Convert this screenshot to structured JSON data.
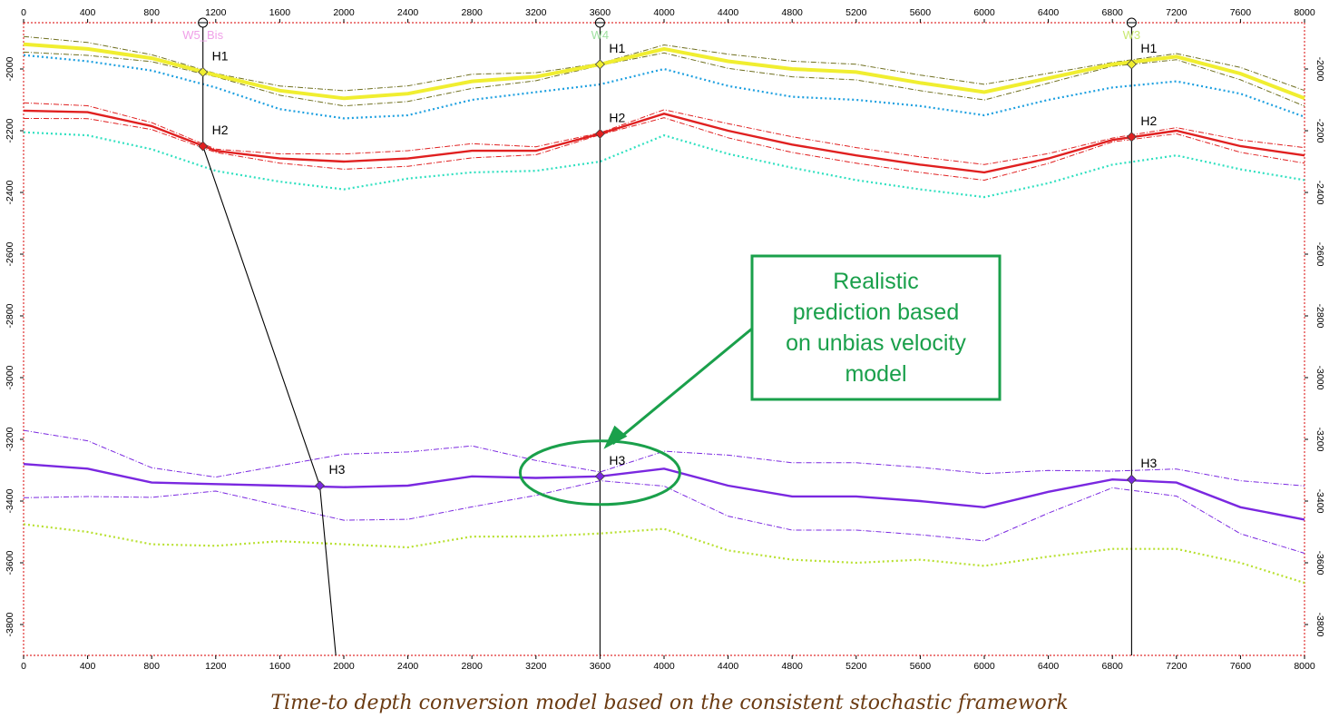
{
  "chart_data": {
    "type": "line",
    "title": "",
    "xlabel": "",
    "ylabel": "",
    "xlim": [
      0,
      8000
    ],
    "ylim": [
      -3900,
      -1850
    ],
    "x_ticks": [
      0,
      400,
      800,
      1200,
      1600,
      2000,
      2400,
      2800,
      3200,
      3600,
      4000,
      4400,
      4800,
      5200,
      5600,
      6000,
      6400,
      6800,
      7200,
      7600,
      8000
    ],
    "y_ticks": [
      -2000,
      -2200,
      -2400,
      -2600,
      -2800,
      -3000,
      -3200,
      -3400,
      -3600,
      -3800
    ],
    "x": [
      0,
      400,
      800,
      1200,
      1600,
      2000,
      2400,
      2800,
      3200,
      3600,
      4000,
      4400,
      4800,
      5200,
      5600,
      6000,
      6400,
      6800,
      7200,
      7600,
      8000
    ],
    "horizons": [
      {
        "name": "H1",
        "color": "#f0ee30",
        "envelope_color": "#707020",
        "values": [
          -1920,
          -1935,
          -1965,
          -2020,
          -2070,
          -2095,
          -2080,
          -2040,
          -2025,
          -1985,
          -1935,
          -1975,
          -2000,
          -2010,
          -2045,
          -2075,
          -2030,
          -1985,
          -1960,
          -2015,
          -2095
        ],
        "uncertainty_max": 22,
        "shallow_values": [
          -1955,
          -1975,
          -2005,
          -2060,
          -2130,
          -2160,
          -2150,
          -2100,
          -2075,
          -2050,
          -2000,
          -2055,
          -2090,
          -2100,
          -2120,
          -2150,
          -2100,
          -2060,
          -2040,
          -2080,
          -2155
        ]
      },
      {
        "name": "H2",
        "color": "#e02020",
        "envelope_color": "#e02020",
        "values": [
          -2135,
          -2140,
          -2185,
          -2265,
          -2290,
          -2300,
          -2290,
          -2265,
          -2265,
          -2210,
          -2145,
          -2200,
          -2245,
          -2280,
          -2310,
          -2335,
          -2290,
          -2230,
          -2200,
          -2250,
          -2280
        ],
        "uncertainty_max": 22,
        "shallow_values": [
          -2205,
          -2215,
          -2260,
          -2330,
          -2365,
          -2390,
          -2355,
          -2335,
          -2330,
          -2300,
          -2215,
          -2275,
          -2320,
          -2360,
          -2390,
          -2415,
          -2370,
          -2310,
          -2280,
          -2325,
          -2360
        ]
      },
      {
        "name": "H3",
        "color": "#7a28e0",
        "envelope_color": "#7a28e0",
        "values": [
          -3280,
          -3295,
          -3340,
          -3345,
          -3350,
          -3355,
          -3350,
          -3320,
          -3325,
          -3320,
          -3295,
          -3350,
          -3385,
          -3385,
          -3400,
          -3420,
          -3370,
          -3330,
          -3340,
          -3420,
          -3460
        ],
        "uncertainty_max": 95,
        "deep_values": [
          -3475,
          -3500,
          -3540,
          -3545,
          -3530,
          -3540,
          -3550,
          -3515,
          -3515,
          -3505,
          -3490,
          -3560,
          -3590,
          -3600,
          -3590,
          -3610,
          -3580,
          -3555,
          -3555,
          -3600,
          -3665
        ]
      }
    ],
    "wells": [
      {
        "name": "W5_Bis",
        "color": "#f0a0e8",
        "x_top": 1120,
        "trajectory": [
          [
            1120,
            -1850
          ],
          [
            1120,
            -2250
          ],
          [
            1850,
            -3350
          ],
          [
            1950,
            -3900
          ]
        ],
        "picks": [
          {
            "horizon": "H1",
            "x": 1120,
            "y": -2010
          },
          {
            "horizon": "H2",
            "x": 1120,
            "y": -2250
          },
          {
            "horizon": "H3",
            "x": 1850,
            "y": -3350
          }
        ]
      },
      {
        "name": "W4",
        "color": "#9fe0a0",
        "x_top": 3600,
        "trajectory": [
          [
            3600,
            -1850
          ],
          [
            3600,
            -3900
          ]
        ],
        "picks": [
          {
            "horizon": "H1",
            "x": 3600,
            "y": -1985
          },
          {
            "horizon": "H2",
            "x": 3600,
            "y": -2210
          },
          {
            "horizon": "H3",
            "x": 3600,
            "y": -3320
          }
        ]
      },
      {
        "name": "W3",
        "color": "#c8e870",
        "x_top": 6920,
        "trajectory": [
          [
            6920,
            -1850
          ],
          [
            6920,
            -3900
          ]
        ],
        "picks": [
          {
            "horizon": "H1",
            "x": 6920,
            "y": -1985
          },
          {
            "horizon": "H2",
            "x": 6920,
            "y": -2220
          },
          {
            "horizon": "H3",
            "x": 6920,
            "y": -3330
          }
        ]
      }
    ],
    "annotations": [
      {
        "text_lines": [
          "Realistic",
          "prediction based",
          "on unbias velocity",
          "model"
        ],
        "color": "#1aa04b",
        "target_x": 3600,
        "target_y": -3320
      }
    ]
  },
  "caption": "Time-to depth conversion model based on the consistent stochastic framework"
}
